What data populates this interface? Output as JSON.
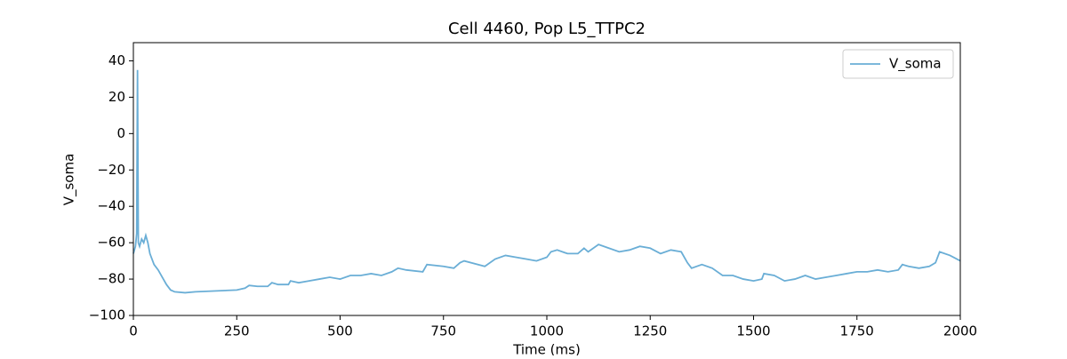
{
  "chart_data": {
    "type": "line",
    "title": "Cell 4460, Pop L5_TTPC2",
    "x_label": "Time (ms)",
    "y_label": "V_soma",
    "x": [
      0,
      5,
      8,
      10,
      12,
      15,
      20,
      25,
      30,
      35,
      40,
      50,
      60,
      70,
      80,
      90,
      100,
      125,
      150,
      200,
      250,
      270,
      280,
      300,
      325,
      335,
      350,
      375,
      380,
      400,
      425,
      450,
      475,
      500,
      525,
      550,
      575,
      600,
      625,
      640,
      660,
      700,
      710,
      750,
      775,
      790,
      800,
      850,
      875,
      900,
      925,
      950,
      975,
      1000,
      1010,
      1025,
      1050,
      1075,
      1090,
      1100,
      1125,
      1150,
      1175,
      1200,
      1225,
      1250,
      1275,
      1300,
      1325,
      1340,
      1350,
      1375,
      1400,
      1425,
      1450,
      1475,
      1500,
      1520,
      1525,
      1550,
      1575,
      1600,
      1625,
      1650,
      1675,
      1700,
      1725,
      1750,
      1775,
      1800,
      1825,
      1850,
      1860,
      1875,
      1900,
      1925,
      1940,
      1950,
      1975,
      2000
    ],
    "series": [
      {
        "name": "V_soma",
        "color": "#6aaed6",
        "values": [
          -66,
          -62,
          -55,
          35,
          -60,
          -62,
          -58,
          -60,
          -56,
          -60,
          -66,
          -72,
          -75,
          -79,
          -83,
          -86,
          -87,
          -87.5,
          -87,
          -86.5,
          -86,
          -85,
          -83.5,
          -84,
          -84,
          -82,
          -83,
          -83,
          -81,
          -82,
          -81,
          -80,
          -79,
          -80,
          -78,
          -78,
          -77,
          -78,
          -76,
          -74,
          -75,
          -76,
          -72,
          -73,
          -74,
          -71,
          -70,
          -73,
          -69,
          -67,
          -68,
          -69,
          -70,
          -68,
          -65,
          -64,
          -66,
          -66,
          -63,
          -65,
          -61,
          -63,
          -65,
          -64,
          -62,
          -63,
          -66,
          -64,
          -65,
          -71,
          -74,
          -72,
          -74,
          -78,
          -78,
          -80,
          -81,
          -80,
          -77,
          -78,
          -81,
          -80,
          -78,
          -80,
          -79,
          -78,
          -77,
          -76,
          -76,
          -75,
          -76,
          -75,
          -72,
          -73,
          -74,
          -73,
          -71,
          -65,
          -67,
          -70
        ]
      }
    ],
    "xlim": [
      0,
      2000
    ],
    "xticks": [
      0,
      250,
      500,
      750,
      1000,
      1250,
      1500,
      1750,
      2000
    ],
    "ylim": [
      -100,
      50
    ],
    "yticks": [
      {
        "value": -100,
        "label": "−100"
      },
      {
        "value": -80,
        "label": "−80"
      },
      {
        "value": -60,
        "label": "−60"
      },
      {
        "value": -40,
        "label": "−40"
      },
      {
        "value": -20,
        "label": "−20"
      },
      0,
      20,
      40
    ],
    "legend": "upper right",
    "grid": false
  }
}
